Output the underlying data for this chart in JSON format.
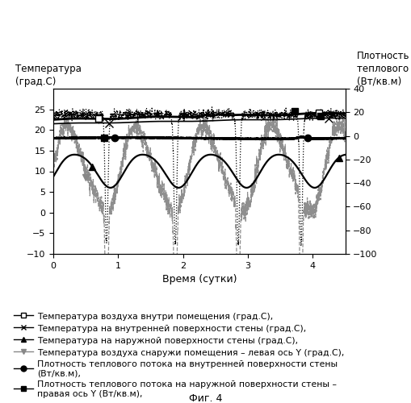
{
  "title_left": "Температура\n(град.С)",
  "title_right": "Плотность\nтеплового потока\n(Вт/кв.м)",
  "xlabel": "Время (сутки)",
  "xlim": [
    0,
    4.5
  ],
  "ylim_left": [
    -10,
    30
  ],
  "ylim_right": [
    -100,
    40
  ],
  "xticks": [
    0,
    1,
    2,
    3,
    4
  ],
  "yticks_left": [
    -10,
    -5,
    0,
    5,
    10,
    15,
    20,
    25
  ],
  "yticks_right": [
    -100,
    -80,
    -60,
    -40,
    -20,
    0,
    20,
    40
  ],
  "fig_caption": "Фиг. 4",
  "legend_labels": [
    "Температура воздуха внутри помещения (град.С),",
    "Температура на внутренней поверхности стены (град.С),",
    "Температура на наружной поверхности стены (град.С),",
    "Температура воздуха снаружи помещения – левая ось Y (град.С),",
    "Плотность теплового потока на внутренней поверхности стены\n(Вт/кв.м),",
    "Плотность теплового потока на наружной поверхности стены –\nправая ось Y (Вт/кв.м),"
  ]
}
